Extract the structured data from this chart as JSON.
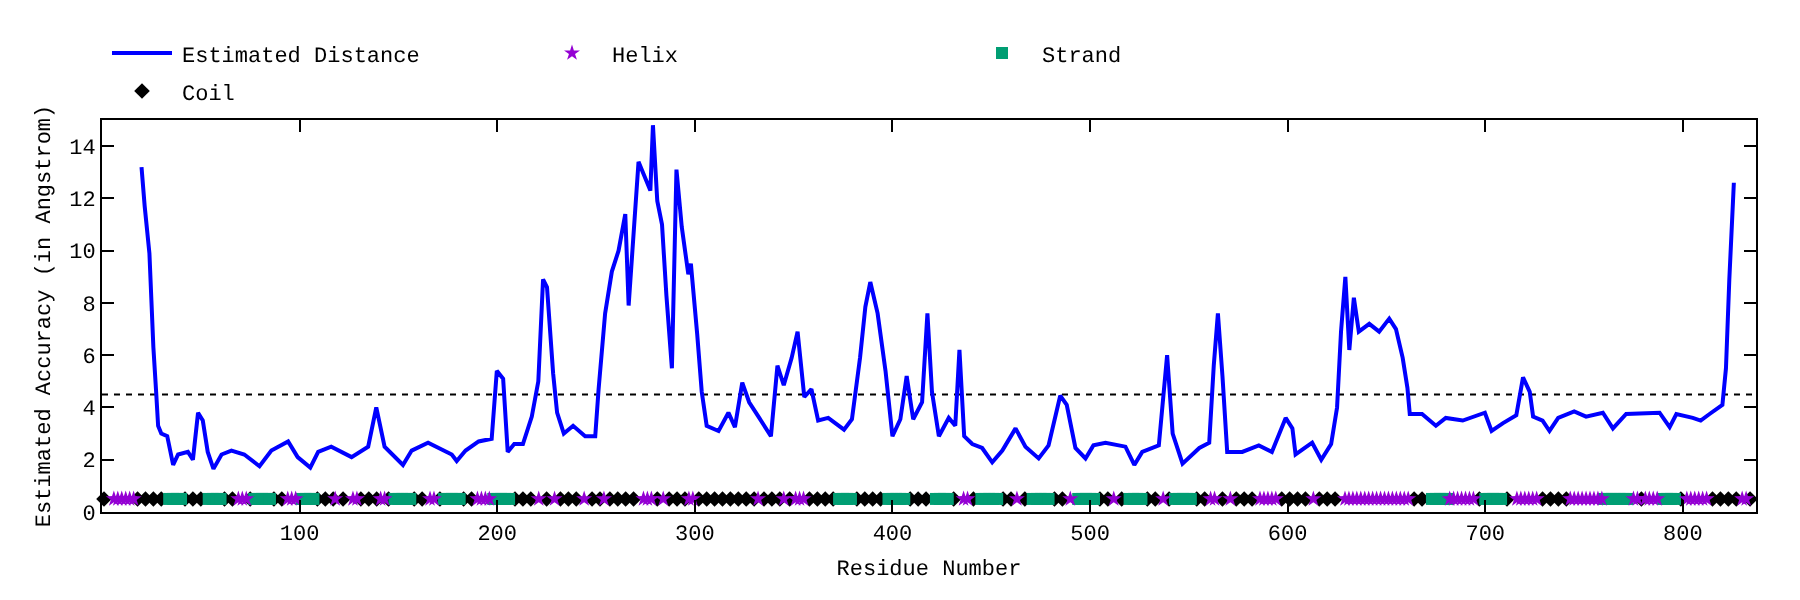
{
  "chart_data": {
    "type": "line",
    "xlabel": "Residue Number",
    "ylabel": "Estimated Accuracy (in Angstrom)",
    "xlim": [
      0,
      837
    ],
    "ylim": [
      0,
      15
    ],
    "xticks": [
      100,
      200,
      300,
      400,
      500,
      600,
      700,
      800
    ],
    "yticks": [
      0,
      2,
      4,
      6,
      8,
      10,
      12,
      14
    ],
    "grid": false,
    "legend": "top",
    "ref_lines": [
      {
        "axis": "y",
        "value": 4.5,
        "color": "#000000",
        "line_style": "dotted"
      }
    ],
    "series": [
      {
        "name": "Estimated Distance",
        "color": "#0000ff",
        "marker": "none",
        "line_style": "solid",
        "x": [
          20,
          21.6,
          24,
          25,
          26,
          27.4,
          28.4,
          30,
          33,
          36,
          38.5,
          43.5,
          46,
          48.6,
          51,
          53.5,
          56.4,
          60.5,
          65.5,
          72,
          79.7,
          85.7,
          94.2,
          99,
          105.4,
          109.4,
          116,
          126.3,
          134.7,
          138.8,
          143,
          152.3,
          156.7,
          165,
          177,
          179.5,
          184,
          190.6,
          197.2,
          199.8,
          203,
          205.3,
          208.6,
          213,
          217.5,
          220.8,
          223.2,
          225.2,
          228.3,
          230.3,
          233.7,
          238.4,
          244.5,
          249.6,
          251.3,
          254.6,
          258,
          261.4,
          264.8,
          266.5,
          271.5,
          277.5,
          278.8,
          281,
          283.4,
          285.6,
          288.4,
          290.7,
          293.4,
          296.7,
          298,
          301.2,
          303.5,
          306,
          312,
          317,
          320.3,
          324,
          327.5,
          332.6,
          338.5,
          341.8,
          345,
          349,
          352,
          355.4,
          359,
          362.4,
          367.5,
          375.5,
          379.5,
          383.6,
          386.3,
          388.8,
          392.5,
          396.5,
          400,
          404,
          407.2,
          410.5,
          415,
          417.7,
          420,
          423.5,
          428.5,
          431.8,
          433.9,
          436.3,
          440.4,
          445.4,
          450.5,
          455.6,
          462.3,
          467.3,
          474,
          479,
          484.9,
          488.2,
          492.6,
          497.7,
          501.7,
          507.8,
          517.9,
          522.4,
          526.4,
          534.8,
          539,
          541.8,
          546.8,
          555.3,
          560.3,
          562.6,
          564.7,
          567,
          569.4,
          577,
          585.4,
          592,
          599,
          602.4,
          604,
          612.4,
          617,
          622,
          625,
          627,
          629.2,
          631.2,
          633.5,
          636,
          641.3,
          646.3,
          651.4,
          654.8,
          658.2,
          660.6,
          661.8,
          668,
          675,
          680,
          688.6,
          699.8,
          703.2,
          709,
          715.7,
          719.1,
          722.5,
          724.2,
          729,
          732.5,
          736.9,
          745,
          751,
          759.5,
          764.6,
          771.3,
          788.2,
          793.3,
          796.7,
          805,
          809,
          813.5,
          820,
          821.8,
          823.5,
          825.8
        ],
        "values": [
          13.2,
          11.7,
          9.9,
          8.1,
          6.3,
          4.6,
          3.3,
          3.0,
          2.9,
          1.8,
          2.2,
          2.3,
          2.0,
          3.8,
          3.5,
          2.3,
          1.65,
          2.2,
          2.35,
          2.2,
          1.75,
          2.35,
          2.7,
          2.1,
          1.7,
          2.3,
          2.5,
          2.1,
          2.5,
          4.0,
          2.5,
          1.8,
          2.35,
          2.65,
          2.2,
          1.95,
          2.35,
          2.7,
          2.8,
          5.4,
          5.1,
          2.3,
          2.6,
          2.6,
          3.65,
          5.0,
          8.9,
          8.6,
          5.3,
          3.8,
          3.0,
          3.3,
          2.9,
          2.9,
          4.7,
          7.6,
          9.2,
          10.0,
          11.4,
          7.9,
          13.4,
          12.3,
          14.8,
          11.9,
          11.0,
          8.3,
          5.5,
          13.1,
          10.9,
          9.1,
          9.5,
          6.8,
          4.6,
          3.3,
          3.1,
          3.8,
          3.25,
          4.95,
          4.2,
          3.6,
          2.9,
          5.6,
          4.85,
          5.9,
          6.9,
          4.4,
          4.7,
          3.5,
          3.6,
          3.15,
          3.55,
          5.9,
          7.85,
          8.8,
          7.6,
          5.4,
          2.9,
          3.55,
          5.2,
          3.55,
          4.2,
          7.6,
          4.6,
          2.9,
          3.6,
          3.3,
          6.2,
          2.9,
          2.6,
          2.45,
          1.9,
          2.35,
          3.2,
          2.5,
          2.05,
          2.55,
          4.45,
          4.1,
          2.45,
          2.05,
          2.55,
          2.65,
          2.5,
          1.8,
          2.3,
          2.55,
          6.0,
          3.0,
          1.85,
          2.45,
          2.65,
          5.6,
          7.6,
          5.2,
          2.3,
          2.3,
          2.55,
          2.3,
          3.6,
          3.2,
          2.2,
          2.65,
          2.0,
          2.6,
          4.0,
          6.9,
          9.0,
          6.2,
          8.2,
          6.9,
          7.2,
          6.9,
          7.4,
          7.0,
          5.9,
          4.75,
          3.75,
          3.75,
          3.3,
          3.6,
          3.5,
          3.8,
          3.1,
          3.4,
          3.7,
          5.15,
          4.6,
          3.65,
          3.5,
          3.1,
          3.6,
          3.85,
          3.65,
          3.8,
          3.2,
          3.75,
          3.8,
          3.25,
          3.75,
          3.6,
          3.5,
          3.75,
          4.1,
          5.5,
          8.9,
          12.6
        ]
      },
      {
        "name": "Helix",
        "type": "scatter",
        "color": "#9400d3",
        "marker": "star",
        "x": [
          6,
          8,
          10,
          12,
          14,
          16,
          69,
          71,
          73,
          94,
          96,
          98,
          118,
          127,
          129,
          141,
          143,
          166,
          168,
          190,
          192,
          194,
          196,
          221,
          229,
          244,
          254,
          274,
          276,
          278,
          284,
          297,
          299,
          332,
          345,
          351,
          353,
          355,
          436,
          438,
          463,
          490,
          512,
          537,
          561,
          563,
          571,
          586,
          588,
          590,
          592,
          594,
          613,
          629,
          631,
          633,
          635,
          637,
          639,
          641,
          643,
          645,
          647,
          649,
          651,
          653,
          655,
          657,
          659,
          661,
          682,
          684,
          686,
          688,
          690,
          692,
          694,
          716,
          718,
          720,
          722,
          724,
          726,
          743,
          745,
          747,
          749,
          751,
          753,
          755,
          757,
          759,
          775,
          777,
          781,
          783,
          785,
          787,
          802,
          804,
          806,
          808,
          810,
          812,
          830,
          832
        ],
        "values": [
          0.5,
          0.5,
          0.5,
          0.5,
          0.5,
          0.5,
          0.5,
          0.5,
          0.5,
          0.5,
          0.5,
          0.5,
          0.5,
          0.5,
          0.5,
          0.5,
          0.5,
          0.5,
          0.5,
          0.5,
          0.5,
          0.5,
          0.5,
          0.5,
          0.5,
          0.5,
          0.5,
          0.5,
          0.5,
          0.5,
          0.5,
          0.5,
          0.5,
          0.5,
          0.5,
          0.5,
          0.5,
          0.5,
          0.5,
          0.5,
          0.5,
          0.5,
          0.5,
          0.5,
          0.5,
          0.5,
          0.5,
          0.5,
          0.5,
          0.5,
          0.5,
          0.5,
          0.5,
          0.5,
          0.5,
          0.5,
          0.5,
          0.5,
          0.5,
          0.5,
          0.5,
          0.5,
          0.5,
          0.5,
          0.5,
          0.5,
          0.5,
          0.5,
          0.5,
          0.5,
          0.5,
          0.5,
          0.5,
          0.5,
          0.5,
          0.5,
          0.5,
          0.5,
          0.5,
          0.5,
          0.5,
          0.5,
          0.5,
          0.5,
          0.5,
          0.5,
          0.5,
          0.5,
          0.5,
          0.5,
          0.5,
          0.5,
          0.5,
          0.5,
          0.5,
          0.5,
          0.5,
          0.5,
          0.5,
          0.5,
          0.5,
          0.5,
          0.5,
          0.5,
          0.5,
          0.5
        ]
      },
      {
        "name": "Strand",
        "type": "scatter",
        "color": "#009e73",
        "marker": "square",
        "x": [
          34,
          36,
          38,
          40,
          54,
          56,
          58,
          60,
          77,
          79,
          81,
          83,
          85,
          101,
          103,
          105,
          107,
          148,
          150,
          152,
          154,
          156,
          173,
          175,
          177,
          179,
          181,
          198,
          200,
          202,
          204,
          206,
          373,
          375,
          377,
          379,
          398,
          400,
          402,
          404,
          406,
          422,
          424,
          426,
          428,
          445,
          447,
          449,
          451,
          453,
          471,
          473,
          475,
          477,
          479,
          494,
          496,
          498,
          500,
          502,
          520,
          522,
          524,
          526,
          543,
          545,
          547,
          549,
          551,
          673,
          675,
          677,
          679,
          681,
          700,
          702,
          704,
          706,
          708,
          760,
          762,
          764,
          766,
          768,
          770,
          772,
          790,
          792,
          794,
          796
        ],
        "values": [
          0.5,
          0.5,
          0.5,
          0.5,
          0.5,
          0.5,
          0.5,
          0.5,
          0.5,
          0.5,
          0.5,
          0.5,
          0.5,
          0.5,
          0.5,
          0.5,
          0.5,
          0.5,
          0.5,
          0.5,
          0.5,
          0.5,
          0.5,
          0.5,
          0.5,
          0.5,
          0.5,
          0.5,
          0.5,
          0.5,
          0.5,
          0.5,
          0.5,
          0.5,
          0.5,
          0.5,
          0.5,
          0.5,
          0.5,
          0.5,
          0.5,
          0.5,
          0.5,
          0.5,
          0.5,
          0.5,
          0.5,
          0.5,
          0.5,
          0.5,
          0.5,
          0.5,
          0.5,
          0.5,
          0.5,
          0.5,
          0.5,
          0.5,
          0.5,
          0.5,
          0.5,
          0.5,
          0.5,
          0.5,
          0.5,
          0.5,
          0.5,
          0.5,
          0.5,
          0.5,
          0.5,
          0.5,
          0.5,
          0.5,
          0.5,
          0.5,
          0.5,
          0.5,
          0.5,
          0.5,
          0.5,
          0.5,
          0.5,
          0.5,
          0.5,
          0.5,
          0.5,
          0.5,
          0.5,
          0.5
        ]
      },
      {
        "name": "Coil",
        "type": "scatter",
        "color": "#000000",
        "marker": "diamond",
        "x": [
          1,
          18,
          22,
          26,
          30,
          42,
          46,
          50,
          62,
          66,
          75,
          87,
          91,
          109,
          113,
          117,
          122,
          131,
          135,
          139,
          145,
          158,
          162,
          171,
          183,
          187,
          209,
          213,
          217,
          225,
          232,
          236,
          240,
          248,
          252,
          257,
          261,
          265,
          269,
          281,
          287,
          291,
          295,
          302,
          306,
          310,
          314,
          318,
          322,
          326,
          330,
          335,
          339,
          343,
          348,
          358,
          362,
          366,
          370,
          382,
          386,
          390,
          394,
          409,
          413,
          417,
          431,
          441,
          456,
          460,
          467,
          482,
          486,
          505,
          509,
          516,
          529,
          533,
          540,
          554,
          558,
          567,
          574,
          578,
          582,
          597,
          601,
          605,
          609,
          616,
          620,
          624,
          664,
          668,
          697,
          711,
          729,
          733,
          737,
          741,
          779,
          799,
          815,
          819,
          823,
          827,
          834
        ],
        "values": [
          0.5,
          0.5,
          0.5,
          0.5,
          0.5,
          0.5,
          0.5,
          0.5,
          0.5,
          0.5,
          0.5,
          0.5,
          0.5,
          0.5,
          0.5,
          0.5,
          0.5,
          0.5,
          0.5,
          0.5,
          0.5,
          0.5,
          0.5,
          0.5,
          0.5,
          0.5,
          0.5,
          0.5,
          0.5,
          0.5,
          0.5,
          0.5,
          0.5,
          0.5,
          0.5,
          0.5,
          0.5,
          0.5,
          0.5,
          0.5,
          0.5,
          0.5,
          0.5,
          0.5,
          0.5,
          0.5,
          0.5,
          0.5,
          0.5,
          0.5,
          0.5,
          0.5,
          0.5,
          0.5,
          0.5,
          0.5,
          0.5,
          0.5,
          0.5,
          0.5,
          0.5,
          0.5,
          0.5,
          0.5,
          0.5,
          0.5,
          0.5,
          0.5,
          0.5,
          0.5,
          0.5,
          0.5,
          0.5,
          0.5,
          0.5,
          0.5,
          0.5,
          0.5,
          0.5,
          0.5,
          0.5,
          0.5,
          0.5,
          0.5,
          0.5,
          0.5,
          0.5,
          0.5,
          0.5,
          0.5,
          0.5,
          0.5,
          0.5,
          0.5,
          0.5,
          0.5,
          0.5,
          0.5,
          0.5,
          0.5,
          0.5,
          0.5,
          0.5,
          0.5,
          0.5,
          0.5,
          0.5
        ]
      }
    ]
  }
}
